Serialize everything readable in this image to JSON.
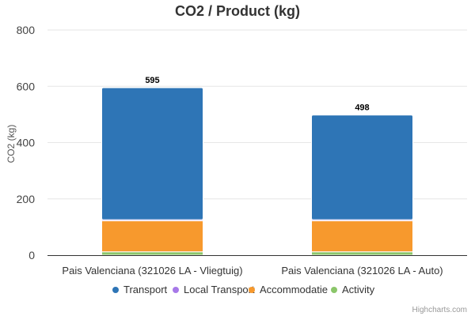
{
  "chart_data": {
    "type": "bar",
    "stacked": true,
    "title": "CO2 / Product (kg)",
    "ylabel": "CO2 (kg)",
    "ylim": [
      0,
      800
    ],
    "yticks": [
      0,
      200,
      400,
      600,
      800
    ],
    "grid": true,
    "legend_position": "bottom-center",
    "categories": [
      "Pais Valenciana (321026 LA - Vliegtuig)",
      "Pais Valenciana (321026 LA - Auto)"
    ],
    "series": [
      {
        "name": "Activity",
        "values": [
          12,
          12
        ],
        "color": "#8bc66a"
      },
      {
        "name": "Accommodatie",
        "values": [
          110,
          110
        ],
        "color": "#f7992d"
      },
      {
        "name": "Local Transport",
        "values": [
          4,
          4
        ],
        "color": "#a779e8"
      },
      {
        "name": "Transport",
        "values": [
          469,
          372
        ],
        "color": "#2e75b6"
      }
    ],
    "totals": [
      "595",
      "498"
    ],
    "legend": [
      {
        "label": "Transport",
        "color": "#2e75b6"
      },
      {
        "label": "Local Transport",
        "color": "#a779e8"
      },
      {
        "label": "Accommodatie",
        "color": "#f7992d"
      },
      {
        "label": "Activity",
        "color": "#8bc66a"
      }
    ],
    "credits": "Highcharts.com"
  }
}
